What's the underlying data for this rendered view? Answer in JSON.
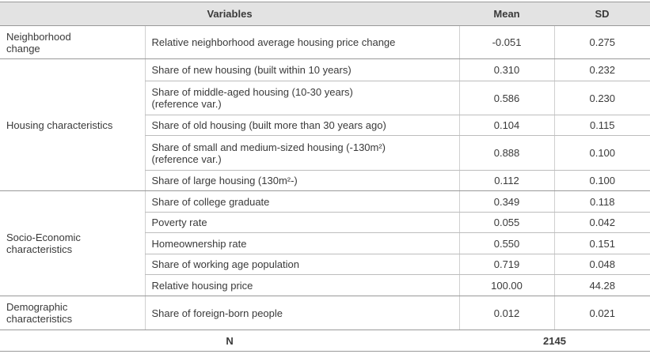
{
  "table": {
    "header": [
      "Variables",
      "Mean",
      "SD"
    ],
    "groups": [
      {
        "label": "Neighborhood change",
        "rows": [
          {
            "variable": "Relative neighborhood average housing price change",
            "mean": "-0.051",
            "sd": "0.275"
          }
        ]
      },
      {
        "label": "Housing characteristics",
        "rows": [
          {
            "variable": "Share of new housing (built within 10 years)",
            "mean": "0.310",
            "sd": "0.232"
          },
          {
            "variable": "Share of middle-aged housing (10-30 years)",
            "note": "(reference var.)",
            "mean": "0.586",
            "sd": "0.230"
          },
          {
            "variable": "Share of old housing (built more than 30 years ago)",
            "mean": "0.104",
            "sd": "0.115"
          },
          {
            "variable": "Share of small and medium-sized housing (-130m²)",
            "note": "(reference var.)",
            "mean": "0.888",
            "sd": "0.100"
          },
          {
            "variable": "Share of large housing (130m²-)",
            "mean": "0.112",
            "sd": "0.100"
          }
        ]
      },
      {
        "label": "Socio-Economic characteristics",
        "rows": [
          {
            "variable": "Share of college graduate",
            "mean": "0.349",
            "sd": "0.118"
          },
          {
            "variable": "Poverty rate",
            "mean": "0.055",
            "sd": "0.042"
          },
          {
            "variable": "Homeownership rate",
            "mean": "0.550",
            "sd": "0.151"
          },
          {
            "variable": "Share of working age population",
            "mean": "0.719",
            "sd": "0.048"
          },
          {
            "variable": "Relative housing price",
            "mean": "100.00",
            "sd": "44.28"
          }
        ]
      },
      {
        "label": "Demographic characteristics",
        "rows": [
          {
            "variable": "Share of foreign-born people",
            "mean": "0.012",
            "sd": "0.021"
          }
        ]
      }
    ],
    "footer": {
      "label": "N",
      "value": "2145"
    }
  }
}
